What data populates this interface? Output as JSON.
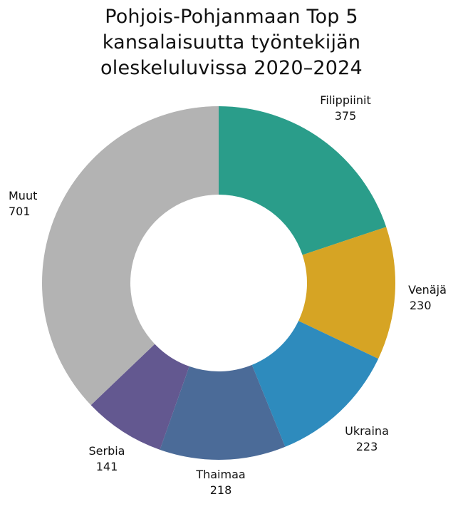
{
  "chart_data": {
    "type": "pie",
    "variant": "donut",
    "title": "Pohjois-Pohjanmaan Top 5 kansalaisuutta työntekijän oleskeluluvissa 2020–2024",
    "title_lines": [
      "Pohjois-Pohjanmaan Top 5",
      "kansalaisuutta työntekijän",
      "oleskeluluvissa 2020–2024"
    ],
    "categories": [
      "Filippiinit",
      "Venäjä",
      "Ukraina",
      "Thaimaa",
      "Serbia",
      "Muut"
    ],
    "values": [
      375,
      230,
      223,
      218,
      141,
      701
    ],
    "colors": [
      "#2a9d8a",
      "#d6a424",
      "#2e8bbd",
      "#4b6b98",
      "#635890",
      "#b3b3b3"
    ],
    "start_angle": "12 o'clock",
    "direction": "clockwise",
    "legend": "none (data labels outside slices)",
    "labels": [
      {
        "name": "Filippiinit",
        "value": "375"
      },
      {
        "name": "Venäjä",
        "value": "230"
      },
      {
        "name": "Ukraina",
        "value": "223"
      },
      {
        "name": "Thaimaa",
        "value": "218"
      },
      {
        "name": "Serbia",
        "value": "141"
      },
      {
        "name": "Muut",
        "value": "701"
      }
    ]
  }
}
